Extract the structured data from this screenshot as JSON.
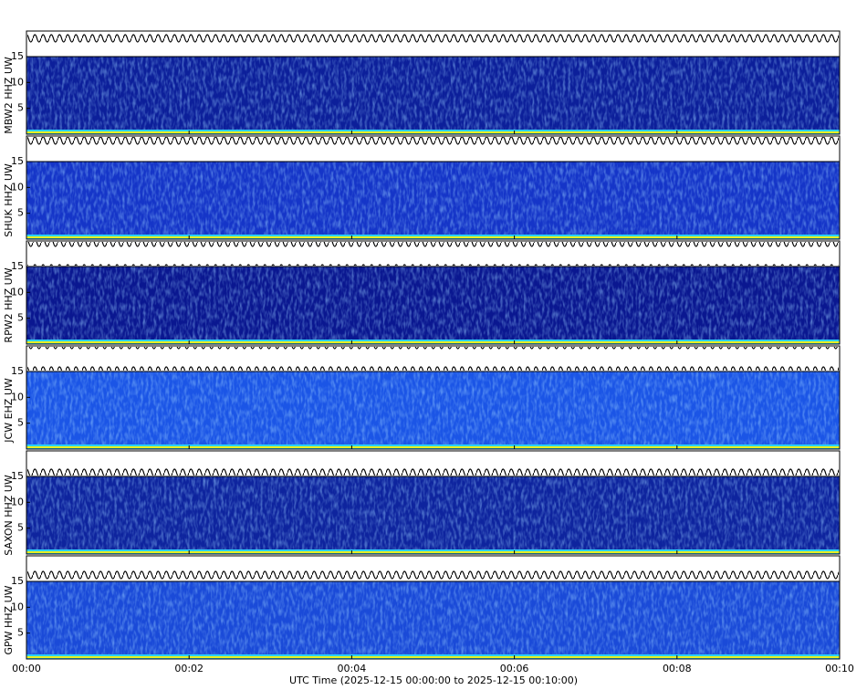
{
  "chart_data": {
    "type": "spectrogram",
    "xlabel": "UTC Time (2025-12-15 00:00:00 to 2025-12-15 00:10:00)",
    "xlim": [
      0,
      10
    ],
    "xticks": [
      {
        "value": 0,
        "label": "00:00"
      },
      {
        "value": 2,
        "label": "00:02"
      },
      {
        "value": 4,
        "label": "00:04"
      },
      {
        "value": 6,
        "label": "00:06"
      },
      {
        "value": 8,
        "label": "00:08"
      },
      {
        "value": 10,
        "label": "00:10"
      }
    ],
    "panels": [
      {
        "label": "MBW2 HHZ UW",
        "ylim": [
          0,
          15
        ],
        "yticks": [
          5,
          10,
          15
        ],
        "color": "#0c1f9a"
      },
      {
        "label": "SHUK HHZ UW",
        "ylim": [
          0,
          15
        ],
        "yticks": [
          5,
          10,
          15
        ],
        "color": "#1535c8"
      },
      {
        "label": "RPW2 HHZ UW",
        "ylim": [
          0,
          15
        ],
        "yticks": [
          5,
          10,
          15
        ],
        "color": "#0a1790"
      },
      {
        "label": "JCW EHZ UW",
        "ylim": [
          0,
          15
        ],
        "yticks": [
          5,
          10,
          15
        ],
        "color": "#1b55e6"
      },
      {
        "label": "SAXON HHZ UW",
        "ylim": [
          0,
          15
        ],
        "yticks": [
          5,
          10,
          15
        ],
        "color": "#0e249e"
      },
      {
        "label": "GPW HHZ UW",
        "ylim": [
          0,
          15
        ],
        "yticks": [
          5,
          10,
          15
        ],
        "color": "#1a4ad8"
      }
    ]
  }
}
